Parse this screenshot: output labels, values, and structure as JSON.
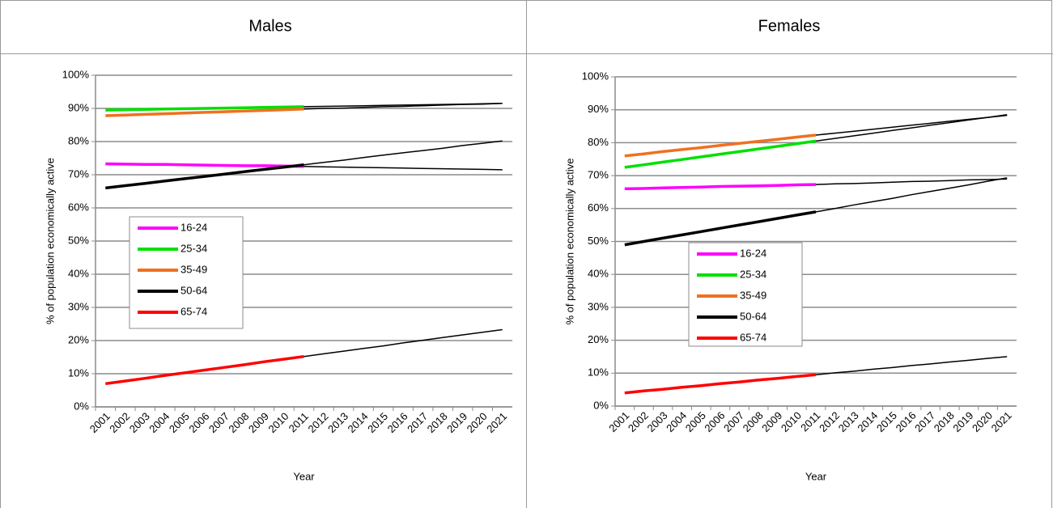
{
  "chart_data": [
    {
      "type": "line",
      "title": "Males",
      "y_label": "% of population economically active",
      "x_label": "Year",
      "categories": [
        "2001",
        "2002",
        "2003",
        "2004",
        "2005",
        "2006",
        "2007",
        "2008",
        "2009",
        "2010",
        "2011",
        "2012",
        "2013",
        "2014",
        "2015",
        "2016",
        "2017",
        "2018",
        "2019",
        "2020",
        "2021"
      ],
      "ylim": [
        0,
        100
      ],
      "yticks": [
        {
          "value": 0,
          "label": "0%"
        },
        {
          "value": 10,
          "label": "10%"
        },
        {
          "value": 20,
          "label": "20%"
        },
        {
          "value": 30,
          "label": "30%"
        },
        {
          "value": 40,
          "label": "40%"
        },
        {
          "value": 50,
          "label": "50%"
        },
        {
          "value": 60,
          "label": "60%"
        },
        {
          "value": 70,
          "label": "70%"
        },
        {
          "value": 80,
          "label": "80%"
        },
        {
          "value": 90,
          "label": "90%"
        },
        {
          "value": 100,
          "label": "100%"
        }
      ],
      "grid": true,
      "legend": "left",
      "series": [
        {
          "name": "16-24",
          "color": "#ff00ff",
          "values": [
            73.3,
            73.2,
            73.1,
            73.1,
            73.0,
            72.9,
            72.8,
            72.7,
            72.7,
            72.6,
            72.5,
            null,
            null,
            null,
            null,
            null,
            null,
            null,
            null,
            null,
            null
          ]
        },
        {
          "name": "25-34",
          "color": "#00e000",
          "values": [
            89.5,
            89.6,
            89.7,
            89.8,
            89.9,
            90.0,
            90.1,
            90.2,
            90.3,
            90.4,
            90.5,
            null,
            null,
            null,
            null,
            null,
            null,
            null,
            null,
            null,
            null
          ]
        },
        {
          "name": "35-49",
          "color": "#f07020",
          "values": [
            87.8,
            88.0,
            88.2,
            88.4,
            88.6,
            88.8,
            89.0,
            89.2,
            89.4,
            89.6,
            89.8,
            null,
            null,
            null,
            null,
            null,
            null,
            null,
            null,
            null,
            null
          ]
        },
        {
          "name": "50-64",
          "color": "#000000",
          "values": [
            66.0,
            66.7,
            67.4,
            68.1,
            68.8,
            69.5,
            70.2,
            70.9,
            71.6,
            72.3,
            73.0,
            null,
            null,
            null,
            null,
            null,
            null,
            null,
            null,
            null,
            null
          ]
        },
        {
          "name": "65-74",
          "color": "#ff0000",
          "values": [
            7.0,
            7.8,
            8.6,
            9.5,
            10.3,
            11.1,
            11.9,
            12.7,
            13.6,
            14.4,
            15.2,
            null,
            null,
            null,
            null,
            null,
            null,
            null,
            null,
            null,
            null
          ]
        },
        {
          "color": "#000000",
          "values": [
            null,
            null,
            null,
            null,
            null,
            null,
            null,
            null,
            null,
            null,
            72.5,
            72.4,
            72.3,
            72.2,
            72.1,
            72.0,
            71.9,
            71.8,
            71.7,
            71.6,
            71.5
          ]
        },
        {
          "color": "#000000",
          "values": [
            null,
            null,
            null,
            null,
            null,
            null,
            null,
            null,
            null,
            null,
            90.5,
            90.6,
            90.7,
            90.8,
            90.9,
            91.0,
            91.1,
            91.2,
            91.3,
            91.4,
            91.5
          ]
        },
        {
          "color": "#000000",
          "values": [
            null,
            null,
            null,
            null,
            null,
            null,
            null,
            null,
            null,
            null,
            89.8,
            90.0,
            90.1,
            90.3,
            90.5,
            90.6,
            90.8,
            91.0,
            91.2,
            91.3,
            91.5
          ]
        },
        {
          "color": "#000000",
          "values": [
            null,
            null,
            null,
            null,
            null,
            null,
            null,
            null,
            null,
            null,
            73.0,
            73.7,
            74.4,
            75.2,
            75.9,
            76.6,
            77.3,
            78.0,
            78.8,
            79.5,
            80.2
          ]
        },
        {
          "color": "#000000",
          "values": [
            null,
            null,
            null,
            null,
            null,
            null,
            null,
            null,
            null,
            null,
            15.2,
            16.0,
            16.8,
            17.6,
            18.4,
            19.3,
            20.1,
            20.9,
            21.7,
            22.5,
            23.3
          ]
        }
      ]
    },
    {
      "type": "line",
      "title": "Females",
      "y_label": "% of population economically active",
      "x_label": "Year",
      "categories": [
        "2001",
        "2002",
        "2003",
        "2004",
        "2005",
        "2006",
        "2007",
        "2008",
        "2009",
        "2010",
        "2011",
        "2012",
        "2013",
        "2014",
        "2015",
        "2016",
        "2017",
        "2018",
        "2019",
        "2020",
        "2021"
      ],
      "ylim": [
        0,
        100
      ],
      "yticks": [
        {
          "value": 0,
          "label": "0%"
        },
        {
          "value": 10,
          "label": "10%"
        },
        {
          "value": 20,
          "label": "20%"
        },
        {
          "value": 30,
          "label": "30%"
        },
        {
          "value": 40,
          "label": "40%"
        },
        {
          "value": 50,
          "label": "50%"
        },
        {
          "value": 60,
          "label": "60%"
        },
        {
          "value": 70,
          "label": "70%"
        },
        {
          "value": 80,
          "label": "80%"
        },
        {
          "value": 90,
          "label": "90%"
        },
        {
          "value": 100,
          "label": "100%"
        }
      ],
      "grid": true,
      "legend": "left",
      "series": [
        {
          "name": "16-24",
          "color": "#ff00ff",
          "values": [
            66.0,
            66.1,
            66.3,
            66.4,
            66.5,
            66.7,
            66.8,
            66.9,
            67.0,
            67.2,
            67.3,
            null,
            null,
            null,
            null,
            null,
            null,
            null,
            null,
            null,
            null
          ]
        },
        {
          "name": "25-34",
          "color": "#00e000",
          "values": [
            72.5,
            73.3,
            74.1,
            74.9,
            75.7,
            76.5,
            77.3,
            78.1,
            78.9,
            79.7,
            80.5,
            null,
            null,
            null,
            null,
            null,
            null,
            null,
            null,
            null,
            null
          ]
        },
        {
          "name": "35-49",
          "color": "#f07020",
          "values": [
            76.0,
            76.6,
            77.3,
            77.9,
            78.5,
            79.2,
            79.8,
            80.4,
            81.0,
            81.7,
            82.3,
            null,
            null,
            null,
            null,
            null,
            null,
            null,
            null,
            null,
            null
          ]
        },
        {
          "name": "50-64",
          "color": "#000000",
          "values": [
            49,
            50,
            51,
            52,
            53,
            54,
            55,
            56,
            57,
            58,
            59,
            null,
            null,
            null,
            null,
            null,
            null,
            null,
            null,
            null,
            null
          ]
        },
        {
          "name": "65-74",
          "color": "#ff0000",
          "values": [
            4.0,
            4.6,
            5.1,
            5.7,
            6.2,
            6.8,
            7.3,
            7.9,
            8.4,
            9.0,
            9.5,
            null,
            null,
            null,
            null,
            null,
            null,
            null,
            null,
            null,
            null
          ]
        },
        {
          "color": "#000000",
          "values": [
            null,
            null,
            null,
            null,
            null,
            null,
            null,
            null,
            null,
            null,
            67.3,
            67.5,
            67.6,
            67.8,
            68.0,
            68.2,
            68.3,
            68.5,
            68.7,
            68.8,
            69.0
          ]
        },
        {
          "color": "#000000",
          "values": [
            null,
            null,
            null,
            null,
            null,
            null,
            null,
            null,
            null,
            null,
            80.5,
            81.3,
            82.1,
            82.9,
            83.7,
            84.5,
            85.3,
            86.1,
            86.9,
            87.7,
            88.5
          ]
        },
        {
          "color": "#000000",
          "values": [
            null,
            null,
            null,
            null,
            null,
            null,
            null,
            null,
            null,
            null,
            82.3,
            82.9,
            83.5,
            84.1,
            84.7,
            85.3,
            85.9,
            86.5,
            87.1,
            87.7,
            88.3
          ]
        },
        {
          "color": "#000000",
          "values": [
            null,
            null,
            null,
            null,
            null,
            null,
            null,
            null,
            null,
            null,
            59.0,
            60.0,
            61.1,
            62.1,
            63.1,
            64.2,
            65.2,
            66.2,
            67.2,
            68.3,
            69.3
          ]
        },
        {
          "color": "#000000",
          "values": [
            null,
            null,
            null,
            null,
            null,
            null,
            null,
            null,
            null,
            null,
            9.5,
            10.1,
            10.6,
            11.2,
            11.7,
            12.3,
            12.8,
            13.4,
            13.9,
            14.5,
            15.0
          ]
        }
      ]
    }
  ]
}
